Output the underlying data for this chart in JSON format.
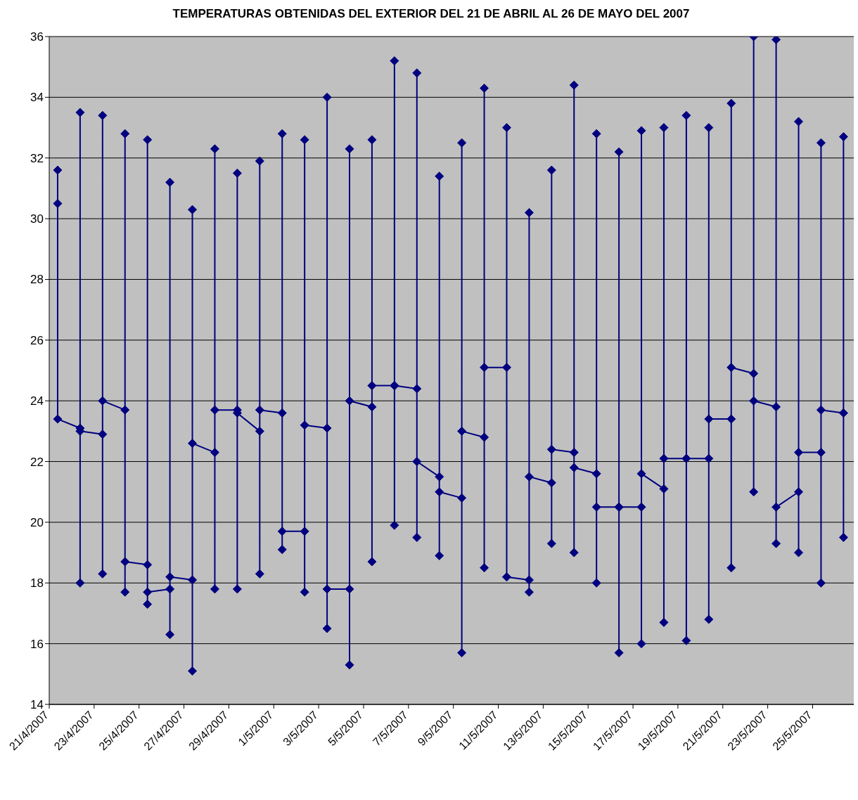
{
  "chart_data": {
    "type": "line",
    "title": "TEMPERATURAS OBTENIDAS DEL EXTERIOR DEL 21 DE ABRIL AL 26 DE MAYO DEL 2007",
    "x": [
      "2007-04-21T09:00",
      "2007-04-21T09:00",
      "2007-04-21T09:00",
      "2007-04-22T09:00",
      "2007-04-22T09:00",
      "2007-04-22T09:00",
      "2007-04-22T09:00",
      "2007-04-23T09:00",
      "2007-04-23T09:00",
      "2007-04-23T09:00",
      "2007-04-23T09:00",
      "2007-04-24T09:00",
      "2007-04-24T09:00",
      "2007-04-24T09:00",
      "2007-04-24T09:00",
      "2007-04-25T09:00",
      "2007-04-25T09:00",
      "2007-04-25T09:00",
      "2007-04-25T09:00",
      "2007-04-26T09:00",
      "2007-04-26T09:00",
      "2007-04-26T09:00",
      "2007-04-26T09:00",
      "2007-04-27T09:00",
      "2007-04-27T09:00",
      "2007-04-27T09:00",
      "2007-04-27T09:00",
      "2007-04-28T09:00",
      "2007-04-28T09:00",
      "2007-04-28T09:00",
      "2007-04-28T09:00",
      "2007-04-29T09:00",
      "2007-04-29T09:00",
      "2007-04-29T09:00",
      "2007-04-29T09:00",
      "2007-04-30T09:00",
      "2007-04-30T09:00",
      "2007-04-30T09:00",
      "2007-04-30T09:00",
      "2007-05-01T09:00",
      "2007-05-01T09:00",
      "2007-05-01T09:00",
      "2007-05-01T09:00",
      "2007-05-02T09:00",
      "2007-05-02T09:00",
      "2007-05-02T09:00",
      "2007-05-02T09:00",
      "2007-05-03T09:00",
      "2007-05-03T09:00",
      "2007-05-03T09:00",
      "2007-05-03T09:00",
      "2007-05-04T09:00",
      "2007-05-04T09:00",
      "2007-05-04T09:00",
      "2007-05-04T09:00",
      "2007-05-05T09:00",
      "2007-05-05T09:00",
      "2007-05-05T09:00",
      "2007-05-05T09:00",
      "2007-05-06T09:00",
      "2007-05-06T09:00",
      "2007-05-06T09:00",
      "2007-05-06T09:00",
      "2007-05-07T09:00",
      "2007-05-07T09:00",
      "2007-05-07T09:00",
      "2007-05-07T09:00",
      "2007-05-08T09:00",
      "2007-05-08T09:00",
      "2007-05-08T09:00",
      "2007-05-08T09:00",
      "2007-05-09T09:00",
      "2007-05-09T09:00",
      "2007-05-09T09:00",
      "2007-05-09T09:00",
      "2007-05-10T09:00",
      "2007-05-10T09:00",
      "2007-05-10T09:00",
      "2007-05-10T09:00",
      "2007-05-11T09:00",
      "2007-05-11T09:00",
      "2007-05-11T09:00",
      "2007-05-11T09:00",
      "2007-05-12T09:00",
      "2007-05-12T09:00",
      "2007-05-12T09:00",
      "2007-05-12T09:00",
      "2007-05-13T09:00",
      "2007-05-13T09:00",
      "2007-05-13T09:00",
      "2007-05-13T09:00",
      "2007-05-14T09:00",
      "2007-05-14T09:00",
      "2007-05-14T09:00",
      "2007-05-14T09:00",
      "2007-05-15T09:00",
      "2007-05-15T09:00",
      "2007-05-15T09:00",
      "2007-05-15T09:00",
      "2007-05-16T09:00",
      "2007-05-16T09:00",
      "2007-05-16T09:00",
      "2007-05-16T09:00",
      "2007-05-17T09:00",
      "2007-05-17T09:00",
      "2007-05-17T09:00",
      "2007-05-17T09:00",
      "2007-05-18T09:00",
      "2007-05-18T09:00",
      "2007-05-18T09:00",
      "2007-05-18T09:00",
      "2007-05-19T09:00",
      "2007-05-19T09:00",
      "2007-05-19T09:00",
      "2007-05-19T09:00",
      "2007-05-20T09:00",
      "2007-05-20T09:00",
      "2007-05-20T09:00",
      "2007-05-20T09:00",
      "2007-05-21T09:00",
      "2007-05-21T09:00",
      "2007-05-21T09:00",
      "2007-05-21T09:00",
      "2007-05-22T09:00",
      "2007-05-22T09:00",
      "2007-05-22T09:00",
      "2007-05-22T09:00",
      "2007-05-23T09:00",
      "2007-05-23T09:00",
      "2007-05-23T09:00",
      "2007-05-23T09:00",
      "2007-05-24T09:00",
      "2007-05-24T09:00",
      "2007-05-24T09:00",
      "2007-05-24T09:00",
      "2007-05-25T09:00",
      "2007-05-25T09:00",
      "2007-05-25T09:00",
      "2007-05-25T09:00",
      "2007-05-26T09:00",
      "2007-05-26T09:00",
      "2007-05-26T09:00",
      "2007-05-26T09:00"
    ],
    "series": [
      {
        "color": "#000080",
        "values": [
          30.5,
          31.6,
          23.4,
          23.1,
          18.0,
          33.5,
          23.0,
          22.9,
          18.3,
          33.4,
          24.0,
          23.7,
          17.7,
          32.8,
          18.7,
          18.6,
          17.3,
          32.6,
          17.7,
          17.8,
          16.3,
          31.2,
          18.2,
          18.1,
          15.1,
          30.3,
          22.6,
          22.3,
          17.8,
          32.3,
          23.7,
          23.7,
          17.8,
          31.5,
          23.6,
          23.0,
          18.3,
          31.9,
          23.7,
          23.6,
          19.1,
          32.8,
          19.7,
          19.7,
          17.7,
          32.6,
          23.2,
          23.1,
          16.5,
          34.0,
          17.8,
          17.8,
          15.3,
          32.3,
          24.0,
          23.8,
          18.7,
          32.6,
          24.5,
          24.5,
          19.9,
          35.2,
          24.5,
          24.4,
          19.5,
          34.8,
          22.0,
          21.5,
          18.9,
          31.4,
          21.0,
          20.8,
          15.7,
          32.5,
          23.0,
          22.8,
          18.5,
          34.3,
          25.1,
          25.1,
          18.2,
          33.0,
          18.2,
          18.1,
          17.7,
          30.2,
          21.5,
          21.3,
          19.3,
          31.6,
          22.4,
          22.3,
          19.0,
          34.4,
          21.8,
          21.6,
          18.0,
          32.8,
          20.5,
          20.5,
          15.7,
          32.2,
          20.5,
          20.5,
          16.0,
          32.9,
          21.6,
          21.1,
          16.7,
          33.0,
          22.1,
          22.1,
          16.1,
          33.4,
          22.1,
          22.1,
          16.8,
          33.0,
          23.4,
          23.4,
          18.5,
          33.8,
          25.1,
          24.9,
          21.0,
          36.0,
          24.0,
          23.8,
          19.3,
          35.9,
          20.5,
          21.0,
          19.0,
          33.2,
          22.3,
          22.3,
          18.0,
          32.5,
          23.7,
          23.6,
          19.5,
          32.7,
          23.6
        ]
      }
    ],
    "xlim": [
      "2007-04-21",
      "2007-05-26T20:00"
    ],
    "xticks": [
      {
        "value": "2007-04-21",
        "label": "21/4/2007"
      },
      {
        "value": "2007-04-23",
        "label": "23/4/2007"
      },
      {
        "value": "2007-04-25",
        "label": "25/4/2007"
      },
      {
        "value": "2007-04-27",
        "label": "27/4/2007"
      },
      {
        "value": "2007-04-29",
        "label": "29/4/2007"
      },
      {
        "value": "2007-05-01",
        "label": "1/5/2007"
      },
      {
        "value": "2007-05-03",
        "label": "3/5/2007"
      },
      {
        "value": "2007-05-05",
        "label": "5/5/2007"
      },
      {
        "value": "2007-05-07",
        "label": "7/5/2007"
      },
      {
        "value": "2007-05-09",
        "label": "9/5/2007"
      },
      {
        "value": "2007-05-11",
        "label": "11/5/2007"
      },
      {
        "value": "2007-05-13",
        "label": "13/5/2007"
      },
      {
        "value": "2007-05-15",
        "label": "15/5/2007"
      },
      {
        "value": "2007-05-17",
        "label": "17/5/2007"
      },
      {
        "value": "2007-05-19",
        "label": "19/5/2007"
      },
      {
        "value": "2007-05-21",
        "label": "21/5/2007"
      },
      {
        "value": "2007-05-23",
        "label": "23/5/2007"
      },
      {
        "value": "2007-05-25",
        "label": "25/5/2007"
      }
    ],
    "ylim": [
      14,
      36
    ],
    "yticks": [
      14,
      16,
      18,
      20,
      22,
      24,
      26,
      28,
      30,
      32,
      34,
      36
    ],
    "grid": "y",
    "legend": false,
    "marker": "diamond",
    "line_style": "solid"
  }
}
